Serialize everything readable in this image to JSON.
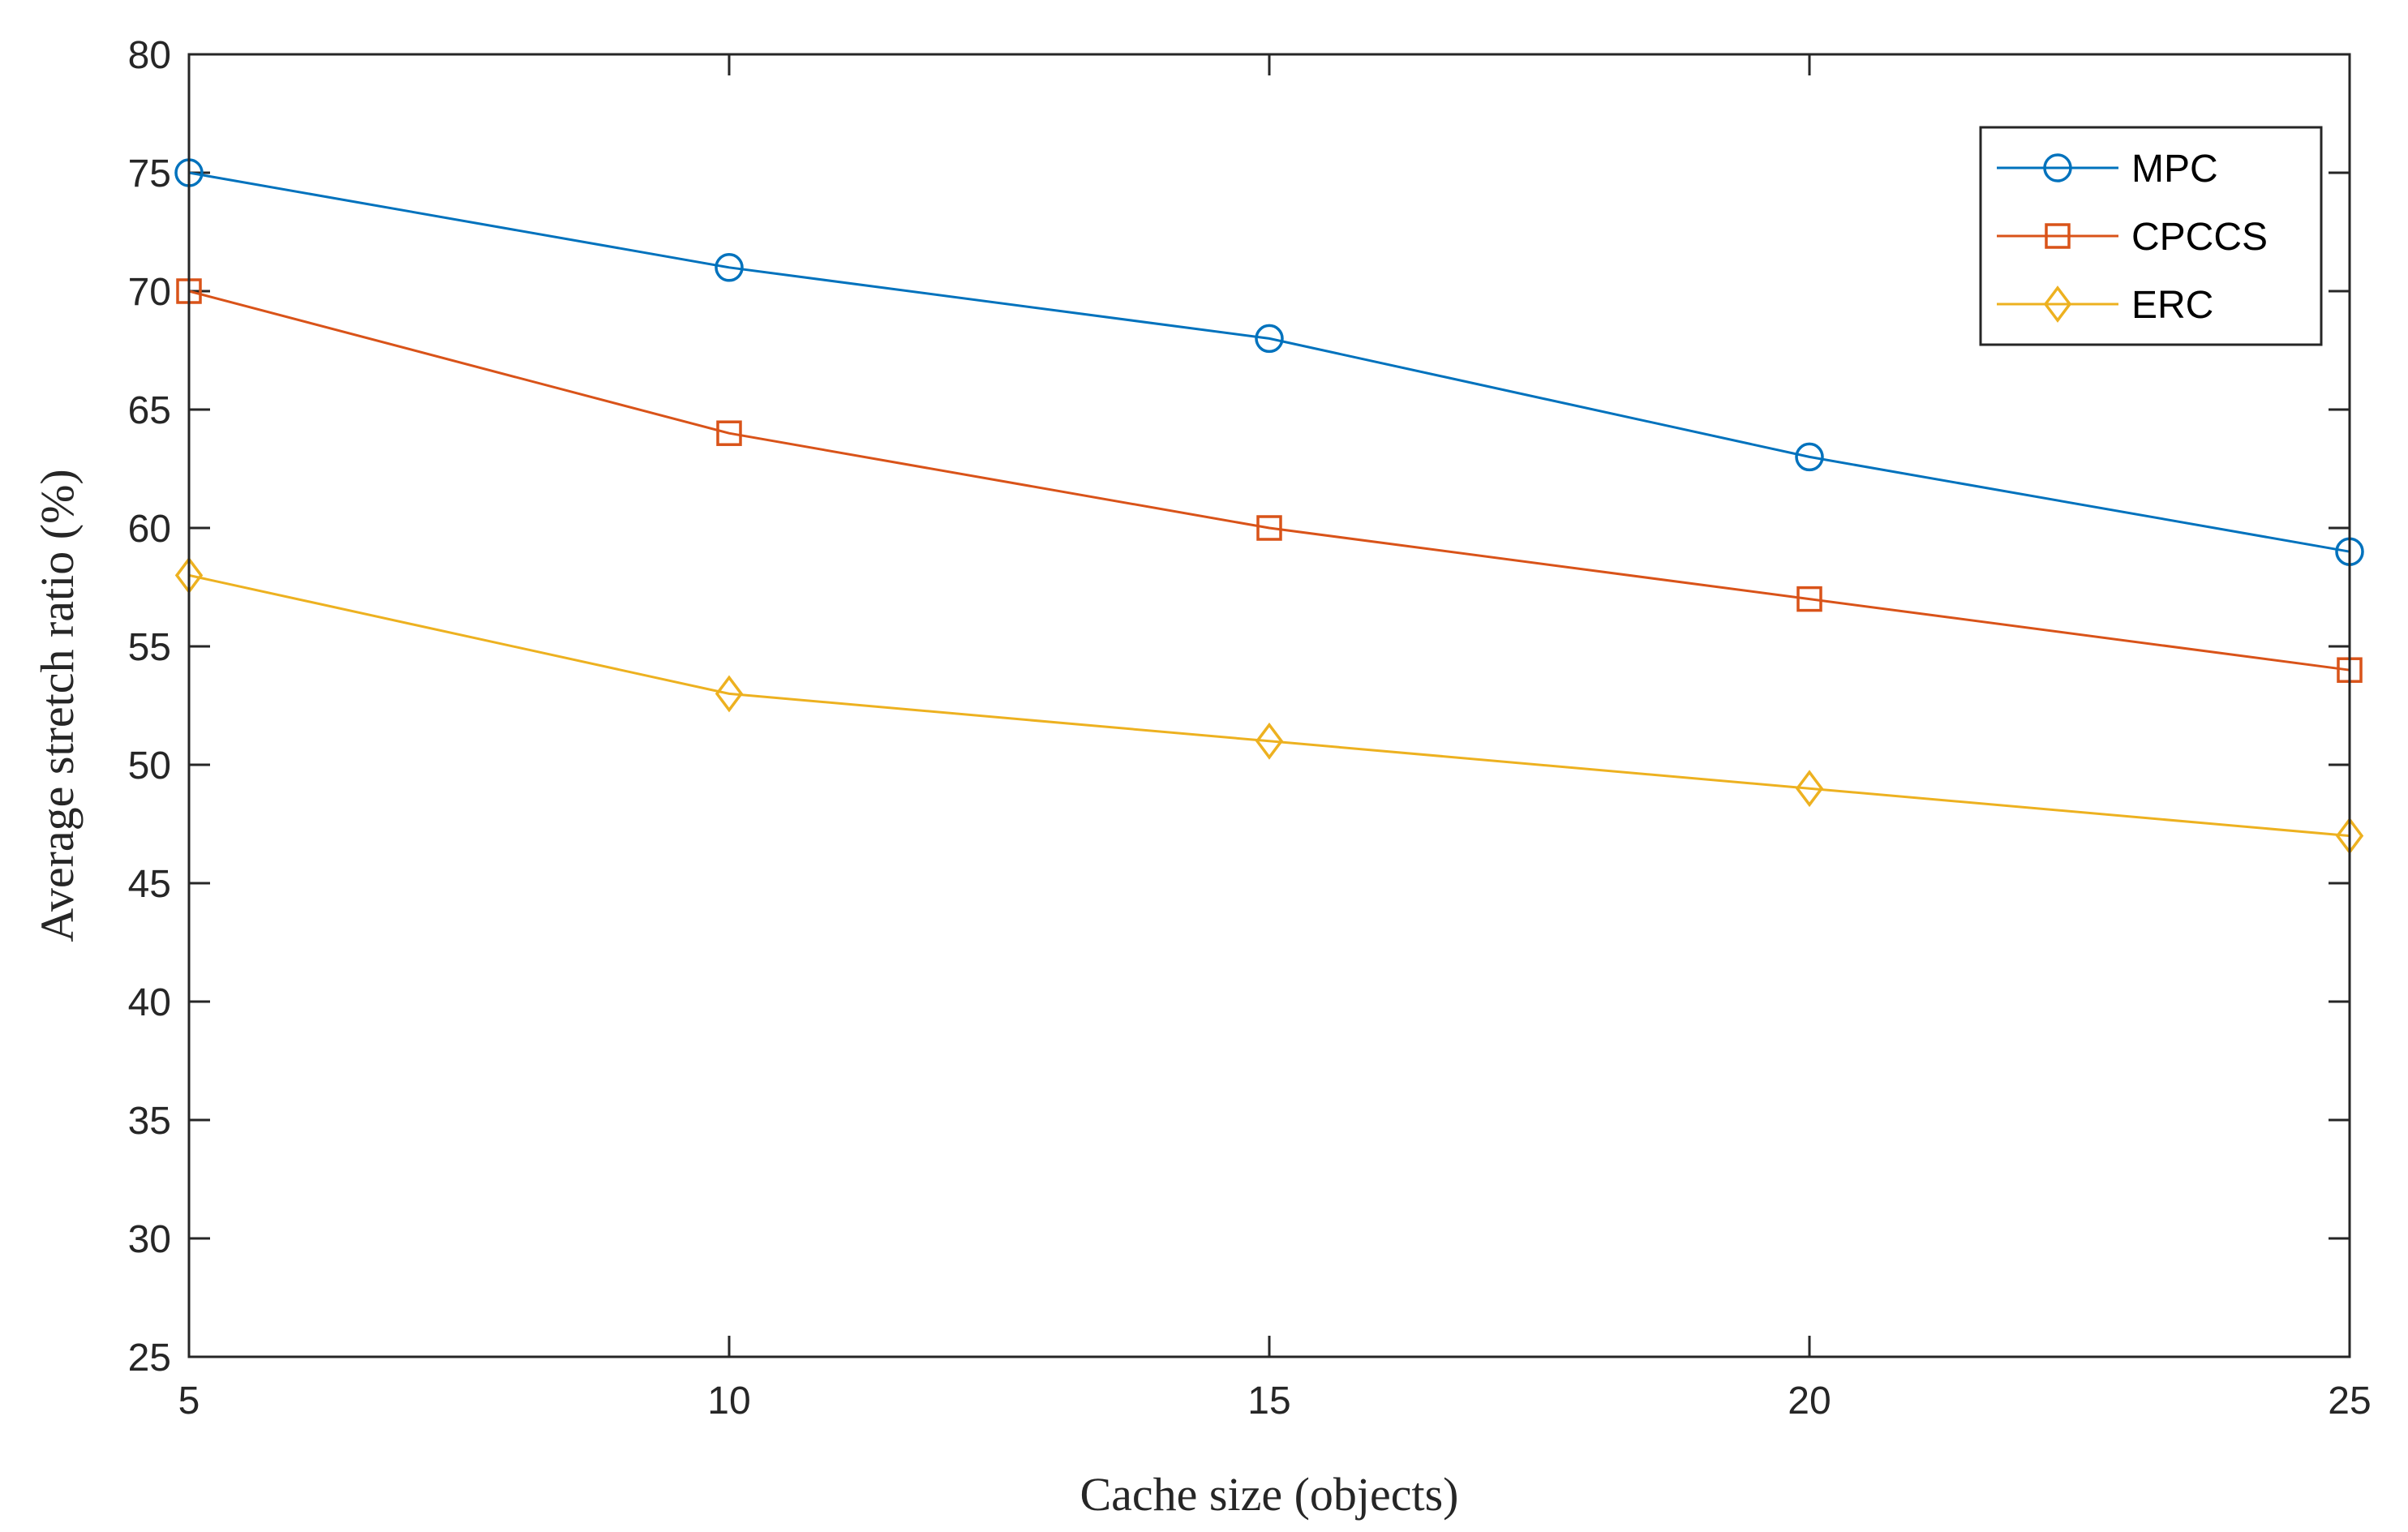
{
  "chart_data": {
    "type": "line",
    "title": "",
    "xlabel": "Cache size (objects)",
    "ylabel": "Average stretch ratio (%)",
    "x": [
      5,
      10,
      15,
      20,
      25
    ],
    "xlim": [
      5,
      25
    ],
    "ylim": [
      25,
      80
    ],
    "xticks": [
      5,
      10,
      15,
      20,
      25
    ],
    "yticks": [
      25,
      30,
      35,
      40,
      45,
      50,
      55,
      60,
      65,
      70,
      75,
      80
    ],
    "grid": false,
    "legend_position": "top-right",
    "series": [
      {
        "name": "MPC",
        "marker": "circle",
        "color": "#0072BD",
        "values": [
          75,
          71,
          68,
          63,
          59
        ]
      },
      {
        "name": "CPCCS",
        "marker": "square",
        "color": "#D95319",
        "values": [
          70,
          64,
          60,
          57,
          54
        ]
      },
      {
        "name": "ERC",
        "marker": "diamond",
        "color": "#EDB120",
        "values": [
          58,
          53,
          51,
          49,
          47
        ]
      }
    ]
  }
}
